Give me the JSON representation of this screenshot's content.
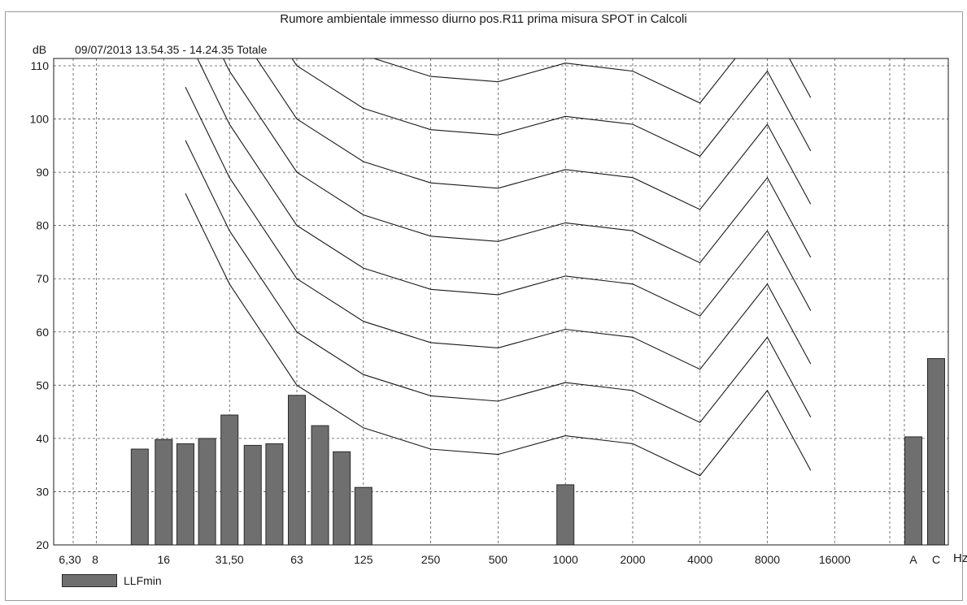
{
  "chart_data": {
    "type": "bar",
    "title": "Rumore ambientale immesso diurno pos.R11 prima misura SPOT in Calcoli",
    "subtitle": "09/07/2013 13.54.35 - 14.24.35  Totale",
    "ylabel": "dB",
    "xlabel": "Hz",
    "ylim": [
      20,
      110
    ],
    "yticks": [
      20,
      30,
      40,
      50,
      60,
      70,
      80,
      90,
      100,
      110
    ],
    "x_tick_labels": [
      "6,30",
      "8",
      "16",
      "31,50",
      "63",
      "125",
      "250",
      "500",
      "1000",
      "2000",
      "4000",
      "8000",
      "16000",
      "A",
      "C"
    ],
    "grid": true,
    "legend_position": "bottom-left",
    "bar_color": "#6f6f6f",
    "series": [
      {
        "name": "LLFmin",
        "bars": [
          {
            "freq": 12.5,
            "value": 38.0
          },
          {
            "freq": 16,
            "value": 39.8
          },
          {
            "freq": 20,
            "value": 39.0
          },
          {
            "freq": 25,
            "value": 40.0
          },
          {
            "freq": 31.5,
            "value": 44.4
          },
          {
            "freq": 40,
            "value": 38.7
          },
          {
            "freq": 50,
            "value": 39.0
          },
          {
            "freq": 63,
            "value": 48.1
          },
          {
            "freq": 80,
            "value": 42.4
          },
          {
            "freq": 100,
            "value": 37.5
          },
          {
            "freq": 125,
            "value": 30.8
          },
          {
            "freq": 1000,
            "value": 31.3
          }
        ],
        "totals": [
          {
            "label": "A",
            "value": 40.3
          },
          {
            "label": "C",
            "value": 55.0
          }
        ]
      }
    ],
    "iso_curves": {
      "freqs": [
        20,
        31.5,
        63,
        125,
        250,
        500,
        1000,
        2000,
        4000,
        8000,
        12500
      ],
      "base_shape": [
        86,
        69,
        50,
        42,
        38,
        37,
        40.5,
        39,
        33,
        49,
        34
      ],
      "levels_dB": [
        0,
        10,
        20,
        30,
        40,
        50,
        60,
        70,
        80,
        90
      ]
    }
  }
}
